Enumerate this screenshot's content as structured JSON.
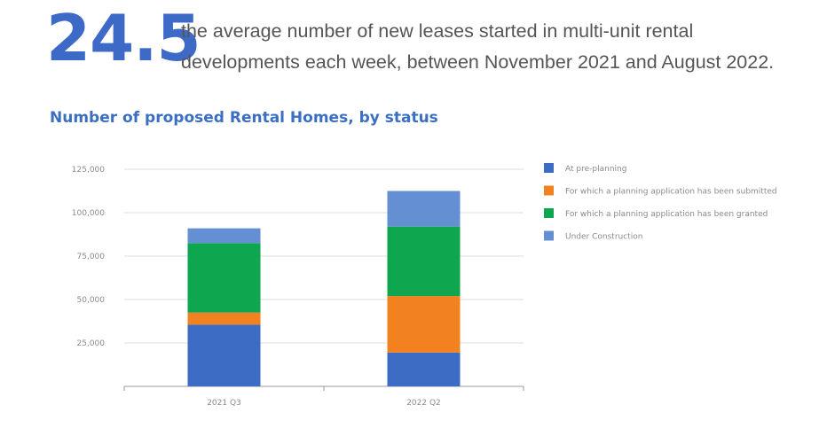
{
  "headline": {
    "value": "24.5",
    "description": "the average number of new leases started in multi-unit rental developments each week, between November 2021 and August 2022."
  },
  "chart_data": {
    "type": "bar",
    "stacked": true,
    "title": "Number of proposed Rental Homes, by status",
    "categories": [
      "2021 Q3",
      "2022 Q2"
    ],
    "series": [
      {
        "name": "At pre-planning",
        "color": "#3d6cc4",
        "values": [
          35500,
          19500
        ]
      },
      {
        "name": "For which a planning application has been submitted",
        "color": "#f2821f",
        "values": [
          7000,
          32500
        ]
      },
      {
        "name": "For which a planning application has been granted",
        "color": "#0fa650",
        "values": [
          40000,
          40000
        ]
      },
      {
        "name": "Under Construction",
        "color": "#658fd3",
        "values": [
          8500,
          20500
        ]
      }
    ],
    "yticks": [
      "125,000",
      "100,000",
      "75,000",
      "50,000",
      "25,000"
    ],
    "ylim": [
      0,
      125000
    ],
    "grid": true,
    "legend_position": "right"
  }
}
